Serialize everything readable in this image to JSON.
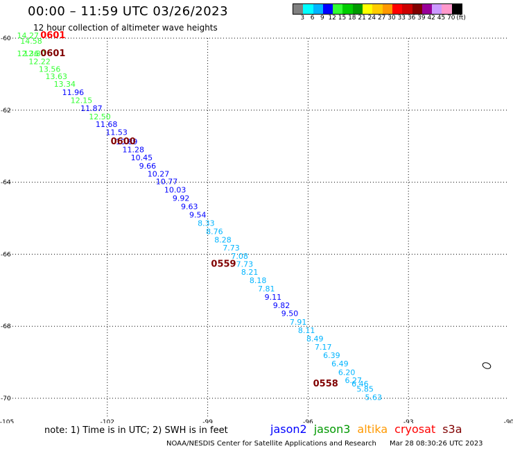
{
  "header": {
    "title": "00:00 – 11:59 UTC 03/26/2023",
    "subtitle": "12 hour collection of altimeter wave heights"
  },
  "colorbar": {
    "colors": [
      "#808080",
      "#00ffff",
      "#00b4ff",
      "#0000ff",
      "#33ff33",
      "#00cc00",
      "#009900",
      "#ffff00",
      "#ffcc00",
      "#ff9900",
      "#ff0000",
      "#cc0000",
      "#800000",
      "#990099",
      "#cc99ff",
      "#ff99cc",
      "#000000"
    ],
    "labels": [
      "3",
      "6",
      "9",
      "12",
      "15",
      "18",
      "21",
      "24",
      "27",
      "30",
      "33",
      "36",
      "39",
      "42",
      "45",
      "70",
      "(ft)"
    ]
  },
  "chart_data": {
    "type": "scatter",
    "xlim": [
      -105,
      -90
    ],
    "ylim": [
      -70.5,
      -60
    ],
    "x_ticks": [
      "-105",
      "-102",
      "-99",
      "-96",
      "-93",
      "-90"
    ],
    "y_ticks": [
      "-60",
      "-62",
      "-64",
      "-66",
      "-68",
      "-70"
    ],
    "grid": true,
    "points": [
      {
        "x": -104.7,
        "y": -60.0,
        "label": "14.27",
        "color": "#33ff33"
      },
      {
        "x": -104.6,
        "y": -60.15,
        "label": "14.58",
        "color": "#33ff33"
      },
      {
        "x": -104.7,
        "y": -60.5,
        "label": "12.36",
        "color": "#33ff33"
      },
      {
        "x": -104.5,
        "y": -60.5,
        "label": "12.80",
        "color": "#33ff33"
      },
      {
        "x": -104.35,
        "y": -60.72,
        "label": "12.22",
        "color": "#33ff33"
      },
      {
        "x": -104.05,
        "y": -60.93,
        "label": "13.56",
        "color": "#33ff33"
      },
      {
        "x": -103.85,
        "y": -61.14,
        "label": "13.63",
        "color": "#33ff33"
      },
      {
        "x": -103.6,
        "y": -61.35,
        "label": "13.34",
        "color": "#33ff33"
      },
      {
        "x": -103.35,
        "y": -61.58,
        "label": "11.96",
        "color": "#0000ff"
      },
      {
        "x": -103.1,
        "y": -61.8,
        "label": "12.15",
        "color": "#33ff33"
      },
      {
        "x": -102.8,
        "y": -62.02,
        "label": "11.87",
        "color": "#0000ff"
      },
      {
        "x": -102.55,
        "y": -62.25,
        "label": "12.50",
        "color": "#33ff33"
      },
      {
        "x": -102.35,
        "y": -62.47,
        "label": "11.68",
        "color": "#0000ff"
      },
      {
        "x": -102.05,
        "y": -62.69,
        "label": "11.53",
        "color": "#0000ff"
      },
      {
        "x": -101.75,
        "y": -62.95,
        "label": "10.89",
        "color": "#0000ff"
      },
      {
        "x": -101.55,
        "y": -63.17,
        "label": "11.28",
        "color": "#0000ff"
      },
      {
        "x": -101.3,
        "y": -63.39,
        "label": "10.45",
        "color": "#0000ff"
      },
      {
        "x": -101.05,
        "y": -63.62,
        "label": "9.66",
        "color": "#0000ff"
      },
      {
        "x": -100.8,
        "y": -63.84,
        "label": "10.27",
        "color": "#0000ff"
      },
      {
        "x": -100.55,
        "y": -64.06,
        "label": "10.77",
        "color": "#0000ff"
      },
      {
        "x": -100.3,
        "y": -64.29,
        "label": "10.03",
        "color": "#0000ff"
      },
      {
        "x": -100.05,
        "y": -64.52,
        "label": "9.92",
        "color": "#0000ff"
      },
      {
        "x": -99.8,
        "y": -64.75,
        "label": "9.63",
        "color": "#0000ff"
      },
      {
        "x": -99.55,
        "y": -64.98,
        "label": "9.54",
        "color": "#0000ff"
      },
      {
        "x": -99.3,
        "y": -65.21,
        "label": "8.33",
        "color": "#00b4ff"
      },
      {
        "x": -99.05,
        "y": -65.44,
        "label": "8.76",
        "color": "#00b4ff"
      },
      {
        "x": -98.8,
        "y": -65.67,
        "label": "8.28",
        "color": "#00b4ff"
      },
      {
        "x": -98.55,
        "y": -65.9,
        "label": "7.73",
        "color": "#00b4ff"
      },
      {
        "x": -98.3,
        "y": -66.13,
        "label": "7.08",
        "color": "#00b4ff"
      },
      {
        "x": -98.15,
        "y": -66.35,
        "label": "7.73",
        "color": "#00b4ff"
      },
      {
        "x": -98.0,
        "y": -66.57,
        "label": "8.21",
        "color": "#00b4ff"
      },
      {
        "x": -97.75,
        "y": -66.8,
        "label": "8.18",
        "color": "#00b4ff"
      },
      {
        "x": -97.5,
        "y": -67.03,
        "label": "7.81",
        "color": "#00b4ff"
      },
      {
        "x": -97.3,
        "y": -67.26,
        "label": "9.11",
        "color": "#0000ff"
      },
      {
        "x": -97.05,
        "y": -67.49,
        "label": "9.82",
        "color": "#0000ff"
      },
      {
        "x": -96.8,
        "y": -67.72,
        "label": "9.50",
        "color": "#0000ff"
      },
      {
        "x": -96.55,
        "y": -67.96,
        "label": "7.91",
        "color": "#00b4ff"
      },
      {
        "x": -96.3,
        "y": -68.19,
        "label": "8.11",
        "color": "#00b4ff"
      },
      {
        "x": -96.05,
        "y": -68.42,
        "label": "8.49",
        "color": "#00b4ff"
      },
      {
        "x": -95.8,
        "y": -68.65,
        "label": "7.17",
        "color": "#00b4ff"
      },
      {
        "x": -95.55,
        "y": -68.88,
        "label": "6.39",
        "color": "#00b4ff"
      },
      {
        "x": -95.3,
        "y": -69.11,
        "label": "6.49",
        "color": "#00b4ff"
      },
      {
        "x": -95.1,
        "y": -69.35,
        "label": "6.20",
        "color": "#00b4ff"
      },
      {
        "x": -94.9,
        "y": -69.58,
        "label": "6.27",
        "color": "#00b4ff"
      },
      {
        "x": -94.7,
        "y": -69.67,
        "label": "6.46",
        "color": "#00b4ff"
      },
      {
        "x": -94.55,
        "y": -69.82,
        "label": "5.85",
        "color": "#00b4ff"
      },
      {
        "x": -94.3,
        "y": -70.05,
        "label": "5.63",
        "color": "#00b4ff"
      }
    ],
    "time_labels": [
      {
        "x": -104.0,
        "y": -60.0,
        "label": "0601",
        "color": "#ff0000"
      },
      {
        "x": -104.0,
        "y": -60.5,
        "label": "0601",
        "color": "#800000"
      },
      {
        "x": -101.9,
        "y": -62.95,
        "label": "0600",
        "color": "#800000"
      },
      {
        "x": -98.9,
        "y": -66.35,
        "label": "0559",
        "color": "#800000"
      },
      {
        "x": -95.85,
        "y": -69.67,
        "label": "0558",
        "color": "#800000"
      }
    ]
  },
  "note": "note:  1) Time is in UTC;  2) SWH is in feet",
  "satellites": [
    {
      "name": "jason2",
      "color": "#0000ff"
    },
    {
      "name": "jason3",
      "color": "#009900"
    },
    {
      "name": "altika",
      "color": "#ff9900"
    },
    {
      "name": "cryosat",
      "color": "#ff0000"
    },
    {
      "name": "s3a",
      "color": "#800000"
    }
  ],
  "footer": {
    "credit": "NOAA/NESDIS Center for Satellite Applications and Research",
    "timestamp": "Mar 28 08:30:26 UTC 2023"
  }
}
